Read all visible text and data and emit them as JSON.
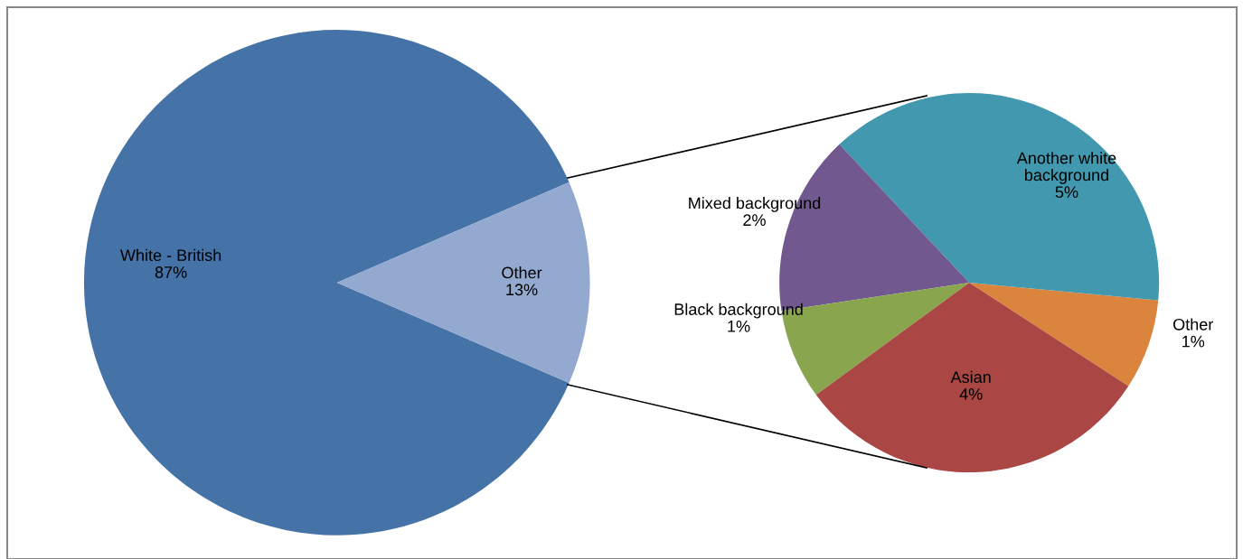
{
  "chart_data": [
    {
      "type": "pie",
      "categories": [
        "White - British",
        "Other"
      ],
      "values": [
        87,
        13
      ],
      "value_labels": [
        "87%",
        "13%"
      ],
      "colors": [
        "#4572a7",
        "#93a9cf"
      ]
    },
    {
      "type": "pie",
      "categories": [
        "Other",
        "Another white\nbackground",
        "Mixed background",
        "Black background",
        "Asian"
      ],
      "values": [
        1,
        5,
        2,
        1,
        4
      ],
      "value_labels": [
        "1%",
        "5%",
        "2%",
        "1%",
        "4%"
      ],
      "colors": [
        "#db843d",
        "#4198af",
        "#71588f",
        "#89a54e",
        "#aa4643"
      ]
    }
  ]
}
